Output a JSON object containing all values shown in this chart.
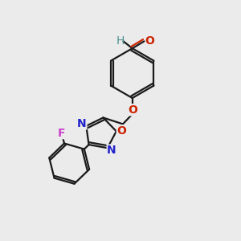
{
  "bg_color": "#ebebeb",
  "bond_color": "#1a1a1a",
  "bond_width": 1.6,
  "atom_colors": {
    "C": "#1a1a1a",
    "H": "#4a9090",
    "O": "#cc2200",
    "N": "#2222cc",
    "F": "#cc44cc"
  },
  "font_size": 10,
  "font_size_small": 9
}
